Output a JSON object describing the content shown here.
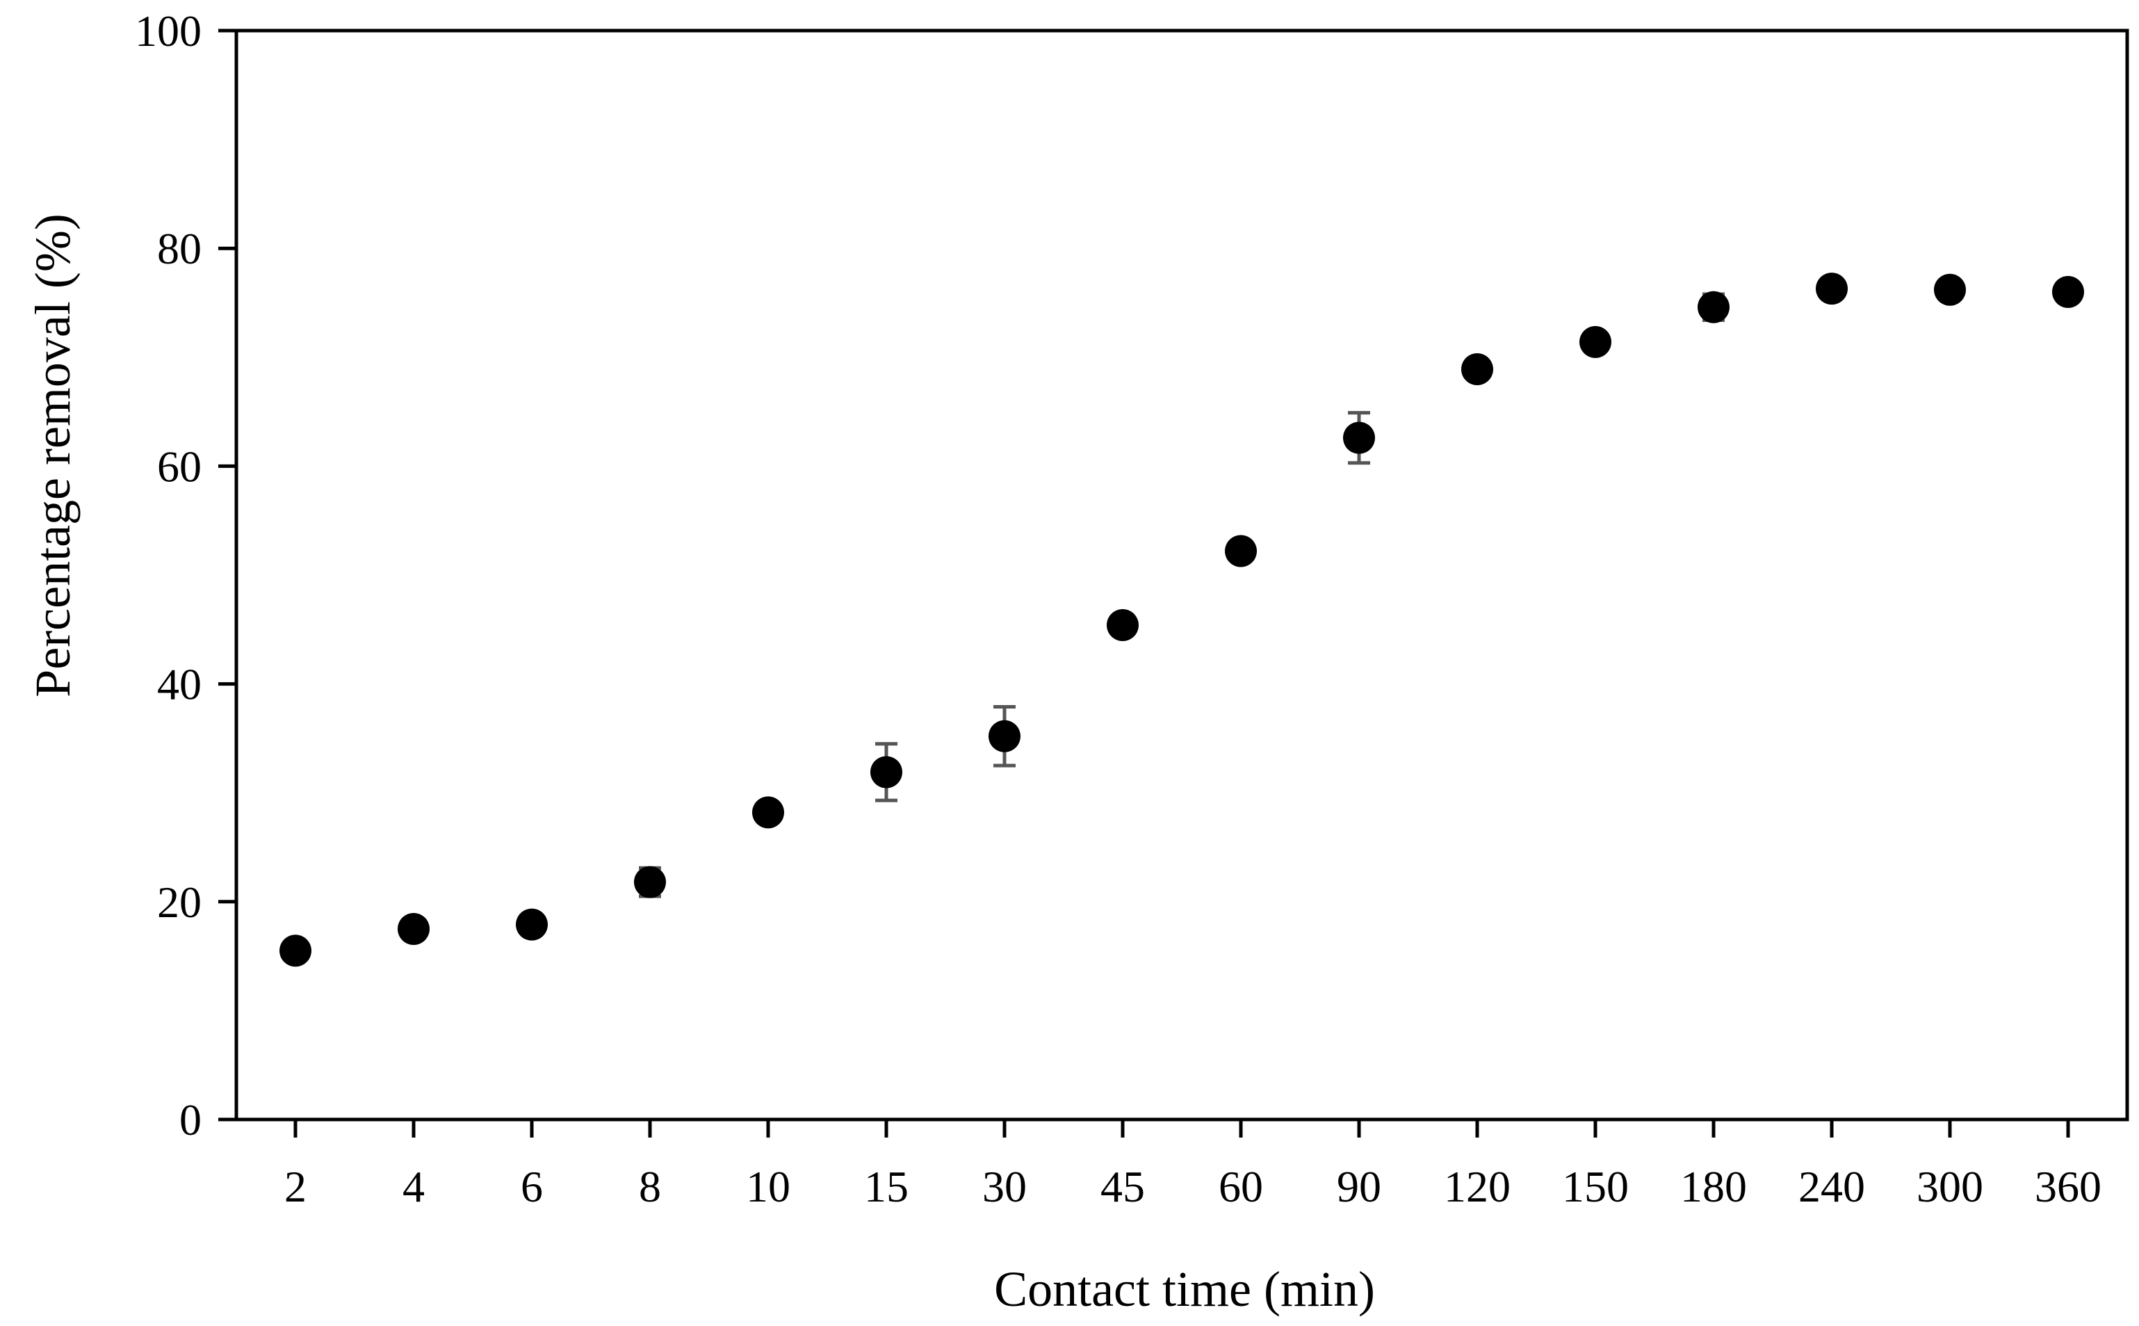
{
  "chart_data": {
    "type": "scatter",
    "xlabel": "Contact time (min)",
    "ylabel": "Percentage removal (%)",
    "categories": [
      "2",
      "4",
      "6",
      "8",
      "10",
      "15",
      "30",
      "45",
      "60",
      "90",
      "120",
      "150",
      "180",
      "240",
      "300",
      "360"
    ],
    "ylim": [
      0,
      100
    ],
    "yticks": [
      "0",
      "20",
      "40",
      "60",
      "80",
      "100"
    ],
    "grid": false,
    "legend": "none",
    "series": [
      {
        "values": [
          15.5,
          17.5,
          17.9,
          21.8,
          28.2,
          31.9,
          35.2,
          45.4,
          52.2,
          62.6,
          68.9,
          71.4,
          74.6,
          76.3,
          76.2,
          76.0
        ],
        "error": [
          0.3,
          0.3,
          0.3,
          1.3,
          0.3,
          2.6,
          2.7,
          0.3,
          0.3,
          2.3,
          0.6,
          0.6,
          1.2,
          0.3,
          0.6,
          0.3
        ],
        "color": "#000000"
      }
    ],
    "colors": {
      "axis": "#000000",
      "marker": "#000000",
      "errorbar": "#555555"
    }
  }
}
